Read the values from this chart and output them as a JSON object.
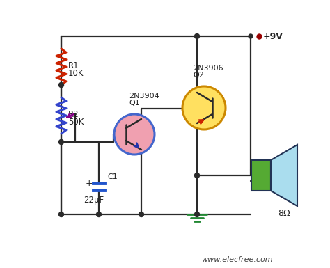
{
  "bg_color": "#ffffff",
  "wire_color": "#2a2a2a",
  "wire_lw": 1.6,
  "resistor_color_r1": "#cc2200",
  "resistor_color_r2": "#3344cc",
  "wiper_color": "#880088",
  "capacitor_color": "#2255cc",
  "transistor_q1_fill": "#f0a0b0",
  "transistor_q1_edge": "#4466cc",
  "transistor_q2_fill": "#ffe060",
  "transistor_q2_edge": "#cc8800",
  "speaker_rect_fill": "#55aa33",
  "speaker_cone_fill": "#aaddee",
  "speaker_edge": "#223355",
  "ground_color": "#228833",
  "vcc_color": "#990000",
  "arrow_q1_color": "#2233aa",
  "arrow_q2_color": "#cc2200",
  "text_color": "#222222",
  "website_color": "#444444",
  "website": "www.elecfree.com",
  "labels": {
    "R1_line1": "R1",
    "R1_line2": "10K",
    "R2_line1": "R2",
    "R2_line2": "50K",
    "Q1_line1": "Q1",
    "Q1_line2": "2N3904",
    "Q2_line1": "Q2",
    "Q2_line2": "2N3906",
    "C1": "C1",
    "C1_val": "22μF",
    "speaker": "8Ω",
    "vcc": "+9V"
  }
}
